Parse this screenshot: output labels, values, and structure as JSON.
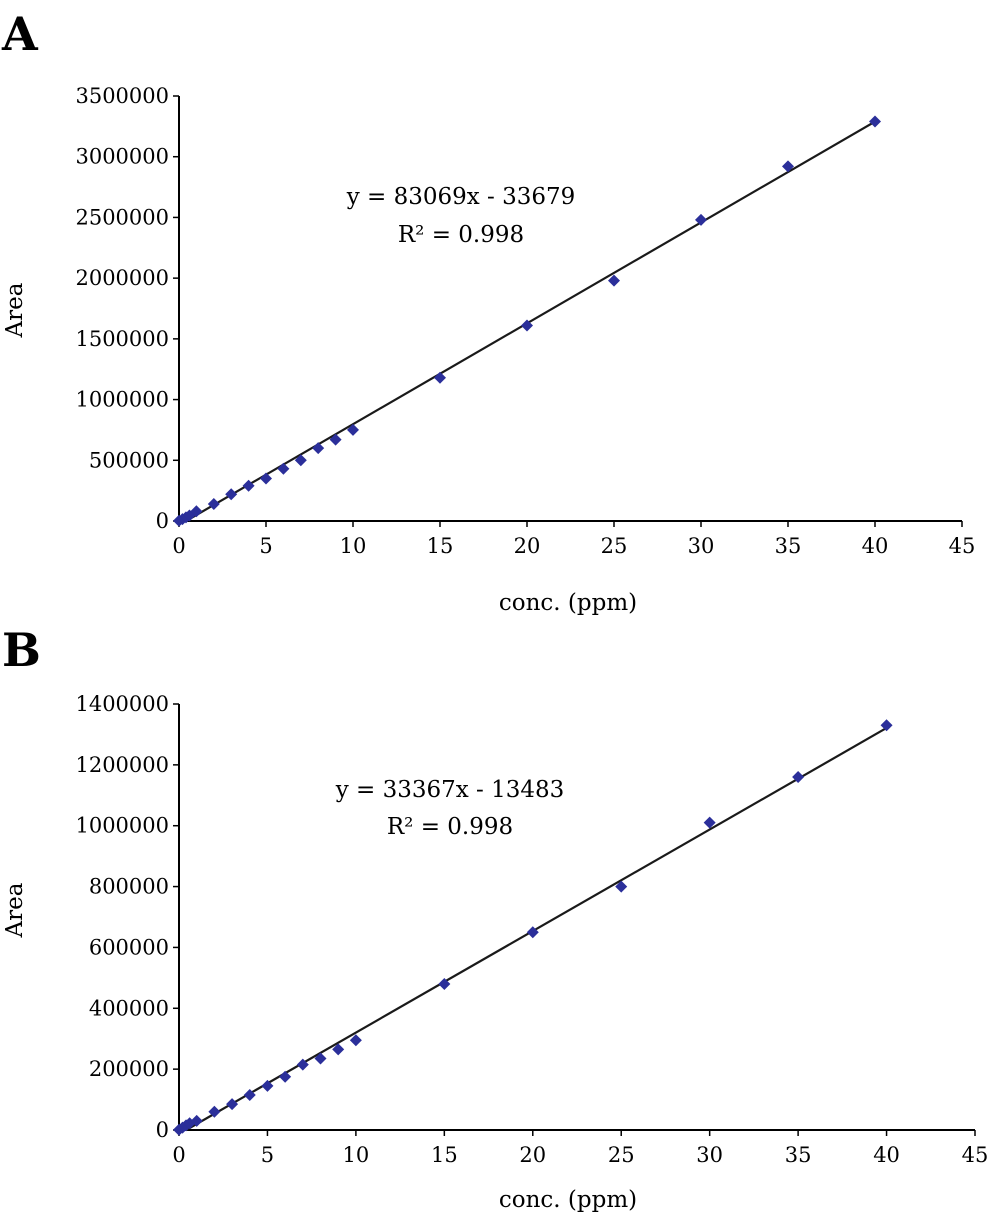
{
  "chart_data": [
    {
      "panel": "A",
      "type": "scatter",
      "xlabel": "conc. (ppm)",
      "ylabel": "Area",
      "xlim": [
        0,
        45
      ],
      "ylim": [
        0,
        3500000
      ],
      "x_ticks": [
        0,
        5,
        10,
        15,
        20,
        25,
        30,
        35,
        40,
        45
      ],
      "y_ticks": [
        0,
        500000,
        1000000,
        1500000,
        2000000,
        2500000,
        3000000,
        3500000
      ],
      "equation": "y = 83069x - 33679",
      "r_squared": "R² = 0.998",
      "trendline": {
        "slope": 83069,
        "intercept": -33679,
        "x_range": [
          0,
          40
        ]
      },
      "points": [
        {
          "x": 0,
          "y": 2000
        },
        {
          "x": 0.2,
          "y": 15000
        },
        {
          "x": 0.4,
          "y": 30000
        },
        {
          "x": 0.6,
          "y": 45000
        },
        {
          "x": 1,
          "y": 80000
        },
        {
          "x": 2,
          "y": 140000
        },
        {
          "x": 3,
          "y": 220000
        },
        {
          "x": 4,
          "y": 290000
        },
        {
          "x": 5,
          "y": 350000
        },
        {
          "x": 6,
          "y": 430000
        },
        {
          "x": 7,
          "y": 500000
        },
        {
          "x": 8,
          "y": 600000
        },
        {
          "x": 9,
          "y": 670000
        },
        {
          "x": 10,
          "y": 750000
        },
        {
          "x": 15,
          "y": 1180000
        },
        {
          "x": 20,
          "y": 1610000
        },
        {
          "x": 25,
          "y": 1980000
        },
        {
          "x": 30,
          "y": 2480000
        },
        {
          "x": 35,
          "y": 2920000
        },
        {
          "x": 40,
          "y": 3290000
        }
      ],
      "marker_color": "#2b2f9a",
      "line_color": "#1a1a1a",
      "grid": false
    },
    {
      "panel": "B",
      "type": "scatter",
      "xlabel": "conc. (ppm)",
      "ylabel": "Area",
      "xlim": [
        0,
        45
      ],
      "ylim": [
        0,
        1400000
      ],
      "x_ticks": [
        0,
        5,
        10,
        15,
        20,
        25,
        30,
        35,
        40,
        45
      ],
      "y_ticks": [
        0,
        200000,
        400000,
        600000,
        800000,
        1000000,
        1200000,
        1400000
      ],
      "equation": "y = 33367x - 13483",
      "r_squared": "R² = 0.998",
      "trendline": {
        "slope": 33367,
        "intercept": -13483,
        "x_range": [
          0,
          40
        ]
      },
      "points": [
        {
          "x": 0,
          "y": 1000
        },
        {
          "x": 0.2,
          "y": 8000
        },
        {
          "x": 0.4,
          "y": 15000
        },
        {
          "x": 0.6,
          "y": 22000
        },
        {
          "x": 1,
          "y": 30000
        },
        {
          "x": 2,
          "y": 60000
        },
        {
          "x": 3,
          "y": 85000
        },
        {
          "x": 4,
          "y": 115000
        },
        {
          "x": 5,
          "y": 145000
        },
        {
          "x": 6,
          "y": 175000
        },
        {
          "x": 7,
          "y": 215000
        },
        {
          "x": 8,
          "y": 235000
        },
        {
          "x": 9,
          "y": 265000
        },
        {
          "x": 10,
          "y": 295000
        },
        {
          "x": 15,
          "y": 480000
        },
        {
          "x": 20,
          "y": 650000
        },
        {
          "x": 25,
          "y": 800000
        },
        {
          "x": 30,
          "y": 1010000
        },
        {
          "x": 35,
          "y": 1160000
        },
        {
          "x": 40,
          "y": 1330000
        }
      ],
      "marker_color": "#2b2f9a",
      "line_color": "#1a1a1a",
      "grid": false
    }
  ]
}
